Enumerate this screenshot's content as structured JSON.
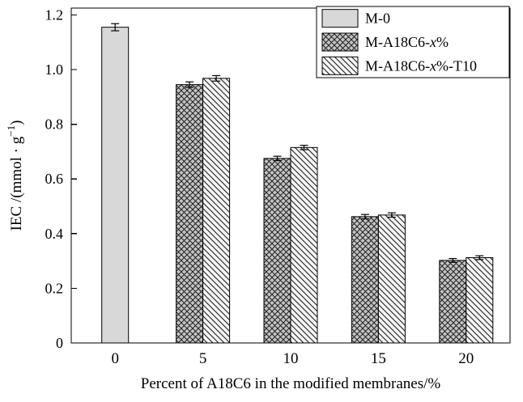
{
  "colors": {
    "axis": "#000000",
    "background": "#ffffff",
    "m0_fill": "#d8d8d8",
    "crosshatch_bg": "#c4c4c4",
    "diagonal_bg": "#f5f5f5",
    "hatch_line": "#1f1f1f"
  },
  "chart_data": {
    "type": "bar",
    "title": "",
    "categories": [
      "0",
      "5",
      "10",
      "15",
      "20"
    ],
    "series": [
      {
        "name": "M-0",
        "pattern": "solid",
        "values": [
          1.155,
          null,
          null,
          null,
          null
        ],
        "errors": [
          0.013,
          null,
          null,
          null,
          null
        ],
        "label_parts": [
          {
            "t": "M-0"
          }
        ]
      },
      {
        "name": "M-A18C6-x%",
        "pattern": "crosshatch",
        "values": [
          null,
          0.945,
          0.675,
          0.462,
          0.302
        ],
        "errors": [
          null,
          0.01,
          0.008,
          0.008,
          0.007
        ],
        "label_parts": [
          {
            "t": "M-A18C6-"
          },
          {
            "t": "x",
            "italic": true
          },
          {
            "t": "%"
          }
        ]
      },
      {
        "name": "M-A18C6-x%-T10",
        "pattern": "diagonal",
        "values": [
          null,
          0.968,
          0.715,
          0.468,
          0.312
        ],
        "errors": [
          null,
          0.01,
          0.008,
          0.008,
          0.007
        ],
        "label_parts": [
          {
            "t": "M-A18C6-"
          },
          {
            "t": "x",
            "italic": true
          },
          {
            "t": "%-T10"
          }
        ]
      }
    ],
    "xlabel": "Percent of A18C6 in the modified membranes/%",
    "ylabel": "IEC /(mmol · g−1)",
    "ylabel_parts": [
      {
        "t": "IEC /(mmol · g"
      },
      {
        "t": "−1",
        "sup": true
      },
      {
        "t": ")"
      }
    ],
    "ylim": [
      0,
      1.225
    ],
    "yticks": [
      0,
      0.2,
      0.4,
      0.6,
      0.8,
      1.0,
      1.2
    ],
    "grid": false,
    "legend_position": "top-right"
  }
}
